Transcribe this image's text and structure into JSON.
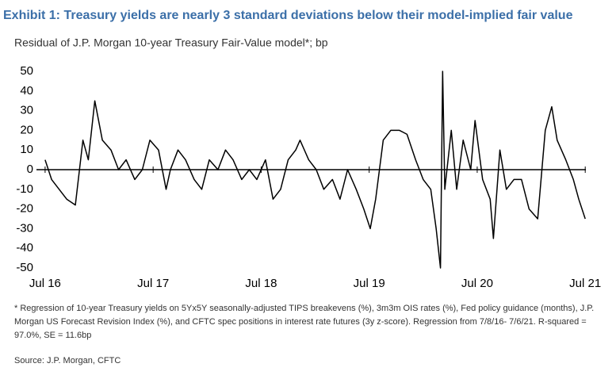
{
  "chart_data": {
    "type": "line",
    "title": "Exhibit 1: Treasury yields are nearly 3 standard deviations below their model-implied fair value",
    "subtitle": "Residual of J.P. Morgan 10-year Treasury Fair-Value model*; bp",
    "footnote": [
      "* Regression of 10-year Treasury yields on 5Yx5Y seasonally-adjusted TIPS breakevens (%), 3m3m OIS rates (%), Fed policy guidance (months), J.P.",
      "Morgan US Forecast Revision Index (%), and CFTC spec positions in interest rate futures (3y z-score). Regression from 7/8/16- 7/6/21. R-squared =",
      "97.0%, SE = 11.6bp"
    ],
    "source": "Source: J.P. Morgan, CFTC",
    "x": [
      2016.5,
      2016.56,
      2016.63,
      2016.7,
      2016.78,
      2016.85,
      2016.9,
      2016.96,
      2017.03,
      2017.11,
      2017.18,
      2017.25,
      2017.33,
      2017.4,
      2017.47,
      2017.55,
      2017.62,
      2017.66,
      2017.73,
      2017.8,
      2017.88,
      2017.95,
      2018.02,
      2018.1,
      2018.17,
      2018.24,
      2018.32,
      2018.39,
      2018.46,
      2018.54,
      2018.61,
      2018.68,
      2018.75,
      2018.82,
      2018.86,
      2018.94,
      2019.01,
      2019.08,
      2019.16,
      2019.23,
      2019.3,
      2019.38,
      2019.45,
      2019.51,
      2019.56,
      2019.63,
      2019.7,
      2019.78,
      2019.85,
      2019.93,
      2020.0,
      2020.07,
      2020.12,
      2020.16,
      2020.18,
      2020.2,
      2020.26,
      2020.31,
      2020.37,
      2020.44,
      2020.48,
      2020.55,
      2020.62,
      2020.65,
      2020.71,
      2020.77,
      2020.84,
      2020.91,
      2020.98,
      2021.06,
      2021.13,
      2021.19,
      2021.24,
      2021.32,
      2021.39,
      2021.44,
      2021.5
    ],
    "series": [
      {
        "name": "Residual",
        "color": "#000000",
        "values": [
          5,
          -5,
          -10,
          -15,
          -18,
          15,
          5,
          35,
          15,
          10,
          0,
          5,
          -5,
          0,
          15,
          10,
          -10,
          0,
          10,
          5,
          -5,
          -10,
          5,
          0,
          10,
          5,
          -5,
          0,
          -5,
          5,
          -15,
          -10,
          5,
          10,
          15,
          5,
          0,
          -10,
          -5,
          -15,
          0,
          -10,
          -20,
          -30,
          -15,
          15,
          20,
          20,
          18,
          5,
          -5,
          -10,
          -30,
          -50,
          50,
          -10,
          20,
          -10,
          15,
          0,
          25,
          -5,
          -15,
          -35,
          10,
          -10,
          -5,
          -5,
          -20,
          -25,
          20,
          32,
          15,
          5,
          -5,
          -15,
          -25
        ]
      }
    ],
    "xlim": [
      2016.42,
      2021.55
    ],
    "xticks": [
      {
        "value": 2016.5,
        "label": "Jul 16"
      },
      {
        "value": 2017.5,
        "label": "Jul 17"
      },
      {
        "value": 2018.5,
        "label": "Jul 18"
      },
      {
        "value": 2019.5,
        "label": "Jul 19"
      },
      {
        "value": 2020.5,
        "label": "Jul 20"
      },
      {
        "value": 2021.5,
        "label": "Jul 21"
      }
    ],
    "ylim": [
      -50,
      50
    ],
    "yticks": [
      -50,
      -40,
      -30,
      -20,
      -10,
      0,
      10,
      20,
      30,
      40,
      50
    ]
  }
}
